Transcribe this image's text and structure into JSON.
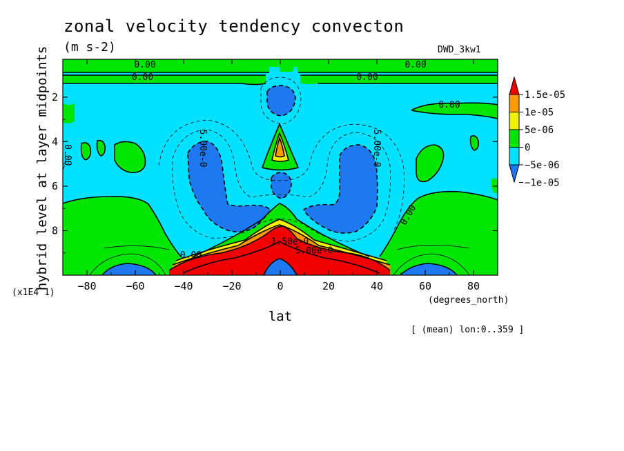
{
  "chart_data": {
    "type": "contour",
    "title": "zonal velocity tendency convecton",
    "units": "(m s-2)",
    "dataset": "DWD_3kw1",
    "xlabel": "lat",
    "x_units": "(degrees_north)",
    "ylabel": "hybrid level at layer midpoints",
    "y_scale_note": "(x1E4 1)",
    "averaging_note": "[ (mean) lon:0..359 ]",
    "xlim": [
      -90,
      90
    ],
    "ylim": [
      10,
      0.3
    ],
    "y_inverted": true,
    "x_ticks": [
      -80,
      -60,
      -40,
      -20,
      0,
      20,
      40,
      60,
      80
    ],
    "x_tick_labels": [
      "−80",
      "−60",
      "−40",
      "−20",
      "0",
      "20",
      "40",
      "60",
      "80"
    ],
    "y_ticks": [
      2,
      4,
      6,
      8
    ],
    "y_tick_labels": [
      "2",
      "4",
      "6",
      "8"
    ],
    "colorbar": {
      "levels": [
        -1e-05,
        -5e-06,
        0,
        5e-06,
        1e-05,
        1.5e-05
      ],
      "labels": [
        "1.5e-05",
        "1e-05",
        "5e-06",
        "0",
        "−5e-06",
        "−1e-05"
      ],
      "colors": {
        "below": "#1e78f0",
        "l1": "#00e0ff",
        "l2": "#00e600",
        "l3": "#f0f000",
        "l4": "#ff9900",
        "above": "#f00000"
      }
    },
    "contour_labels": [
      {
        "text": "0.00",
        "lat": -56,
        "lev": 0.55
      },
      {
        "text": "0.00",
        "lat": 56,
        "lev": 0.55
      },
      {
        "text": "0.00",
        "lat": -57,
        "lev": 1.1
      },
      {
        "text": "0.00",
        "lat": 36,
        "lev": 1.1
      },
      {
        "text": "0.00",
        "lat": 70,
        "lev": 2.35
      },
      {
        "text": "0.00",
        "lat": -88,
        "lev": 4.6
      },
      {
        "text": "5.00e-0",
        "lat": -32,
        "lev": 4.3
      },
      {
        "text": "5.00e-0",
        "lat": 40,
        "lev": 4.3
      },
      {
        "text": "0.00",
        "lat": 53,
        "lev": 7.3
      },
      {
        "text": "0.00",
        "lat": -37,
        "lev": 9.1
      },
      {
        "text": "1.50e-0",
        "lat": 4,
        "lev": 8.5
      },
      {
        "text": "5.00e-0",
        "lat": 14,
        "lev": 8.9
      }
    ]
  }
}
